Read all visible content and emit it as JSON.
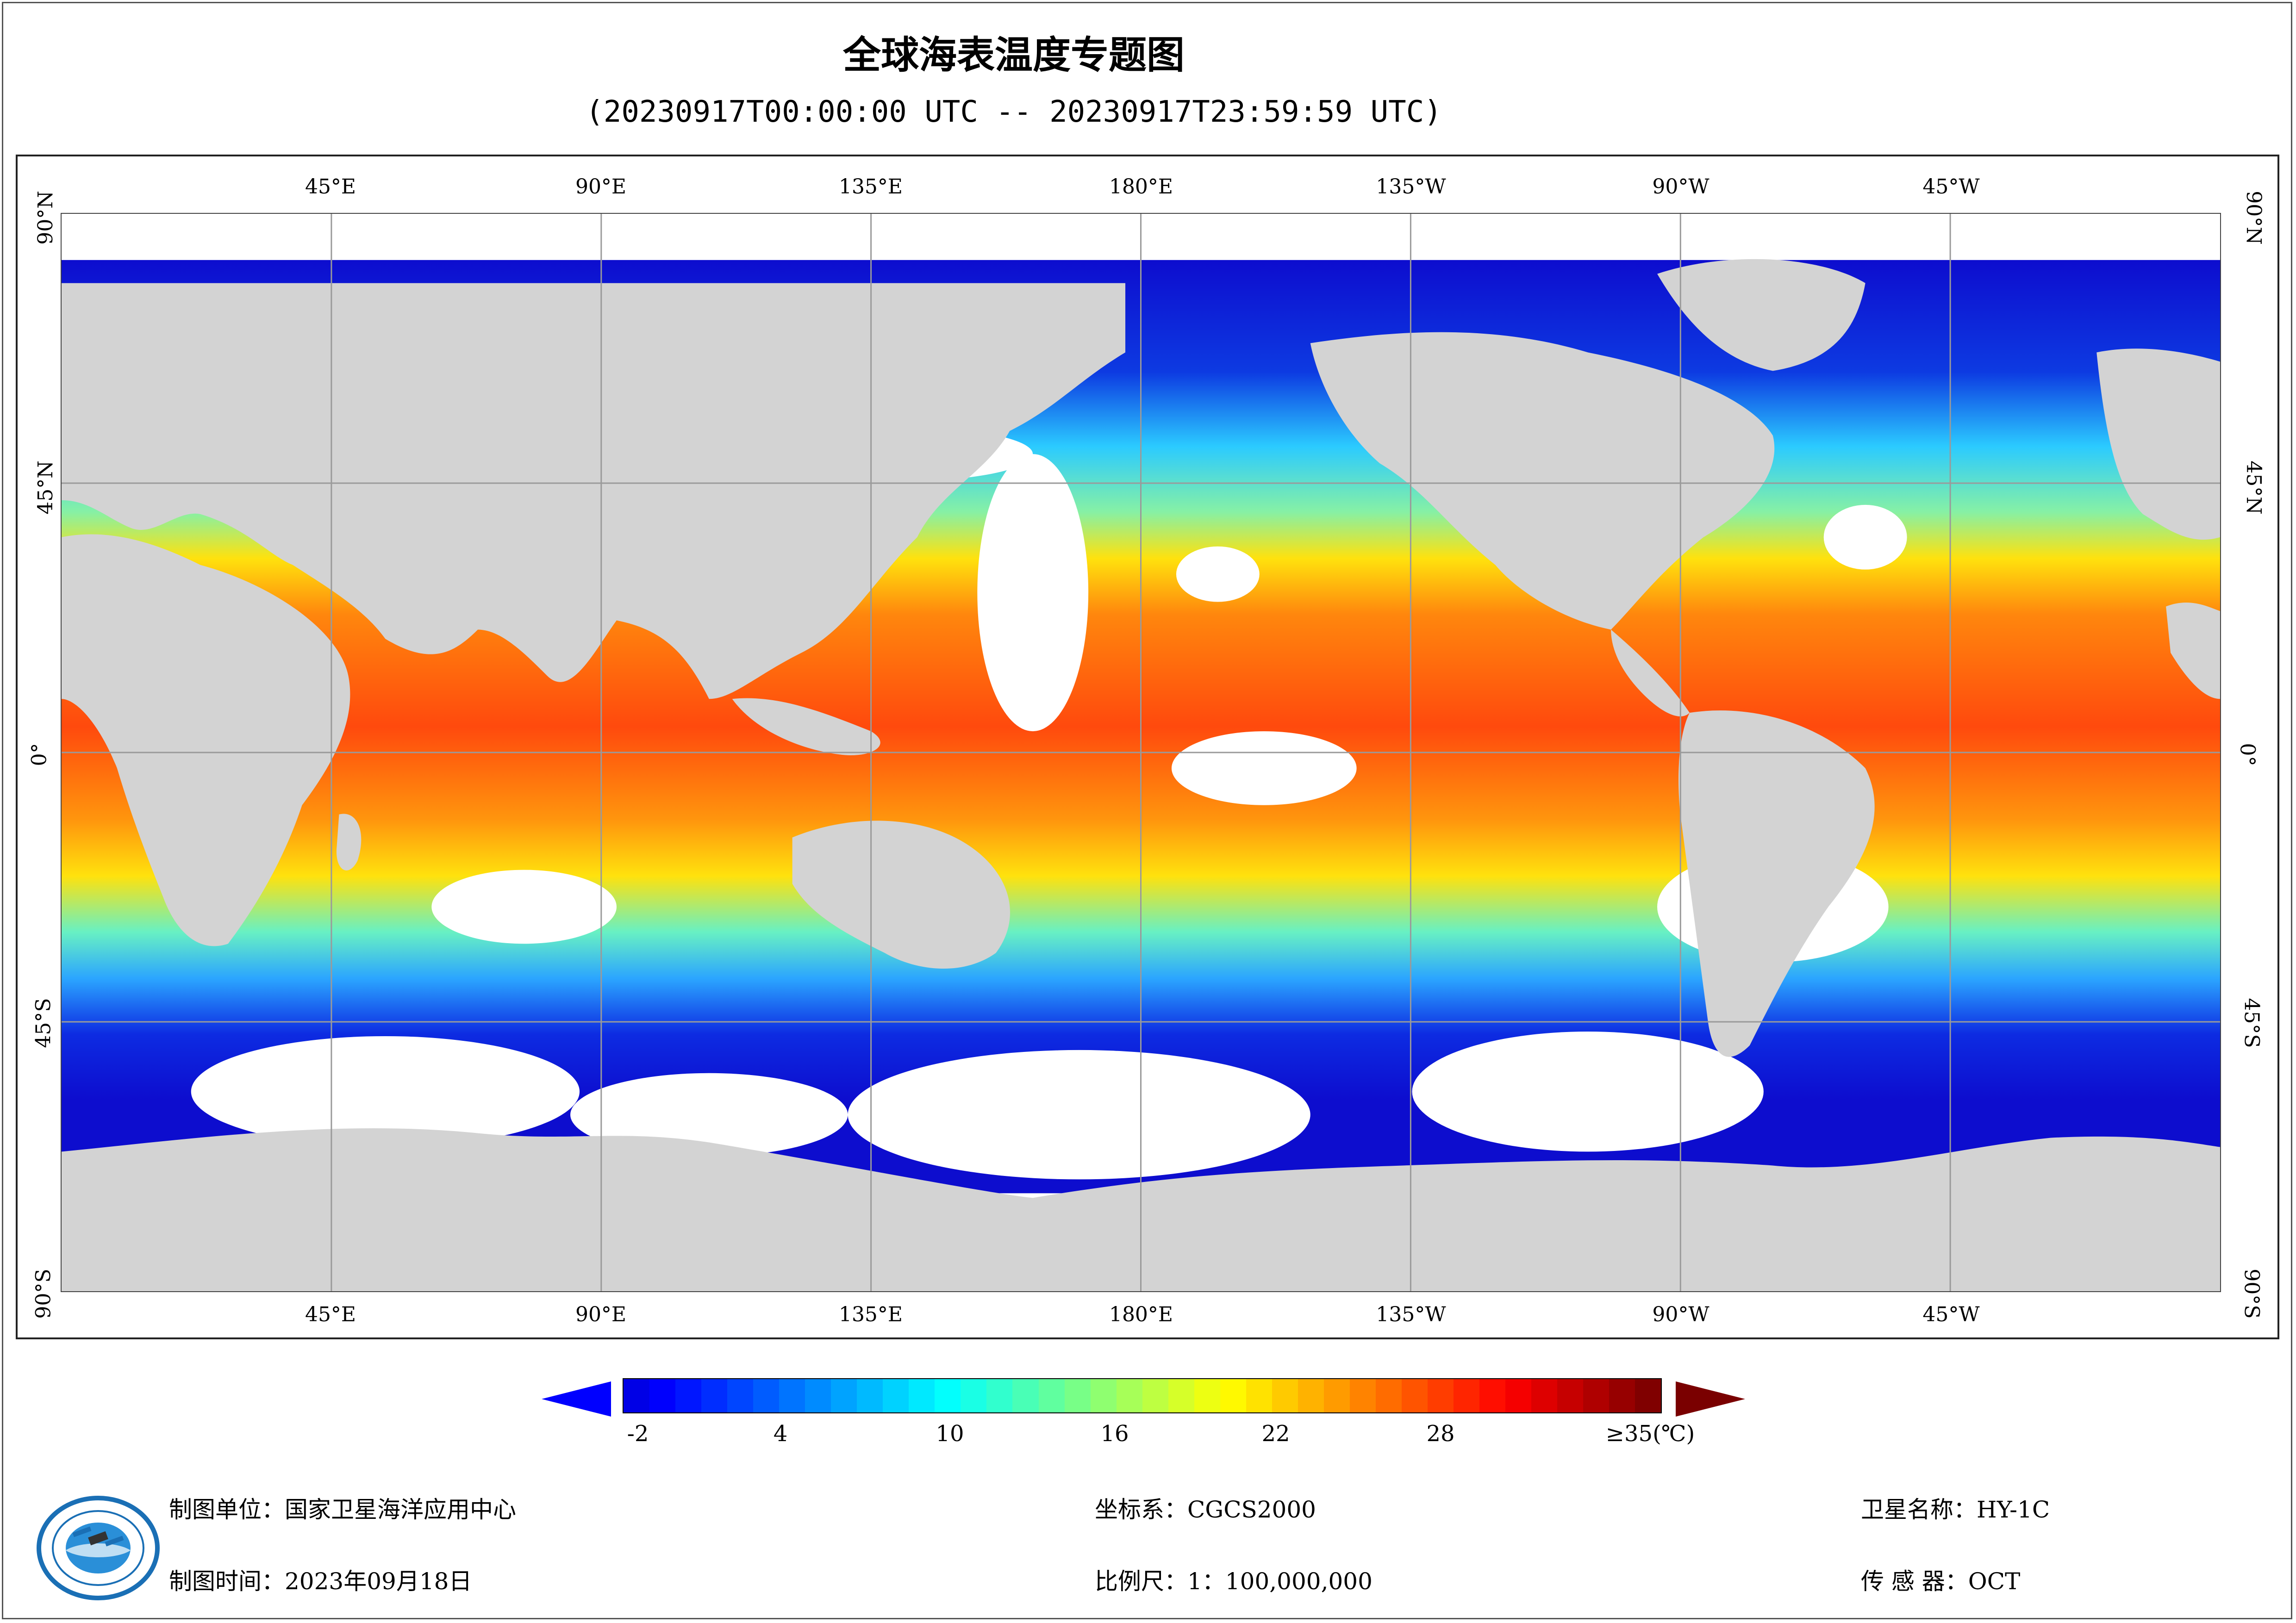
{
  "title": "全球海表温度专题图",
  "subtitle": "(20230917T00:00:00 UTC -- 20230917T23:59:59 UTC)",
  "map": {
    "lon_labels": [
      "45°E",
      "90°E",
      "135°E",
      "180°E",
      "135°W",
      "90°W",
      "45°W"
    ],
    "lat_labels": [
      "90°N",
      "45°N",
      "0°",
      "45°S",
      "90°S"
    ],
    "land_color": "#d3d3d3",
    "no_data_color": "#ffffff",
    "grid": true
  },
  "colorbar": {
    "labels": [
      "-2",
      "4",
      "10",
      "16",
      "22",
      "28",
      "≥35(℃)"
    ],
    "min": -2,
    "max": 35,
    "unit": "℃",
    "low_color": "#0000ff",
    "high_color": "#7a0000"
  },
  "footer": {
    "org": "制图单位：国家卫星海洋应用中心",
    "date": "制图时间：2023年09月18日",
    "crs": "坐标系：CGCS2000",
    "scale": "比例尺：1：100,000,000",
    "satellite": "卫星名称：HY-1C",
    "sensor": "传 感 器：OCT"
  }
}
